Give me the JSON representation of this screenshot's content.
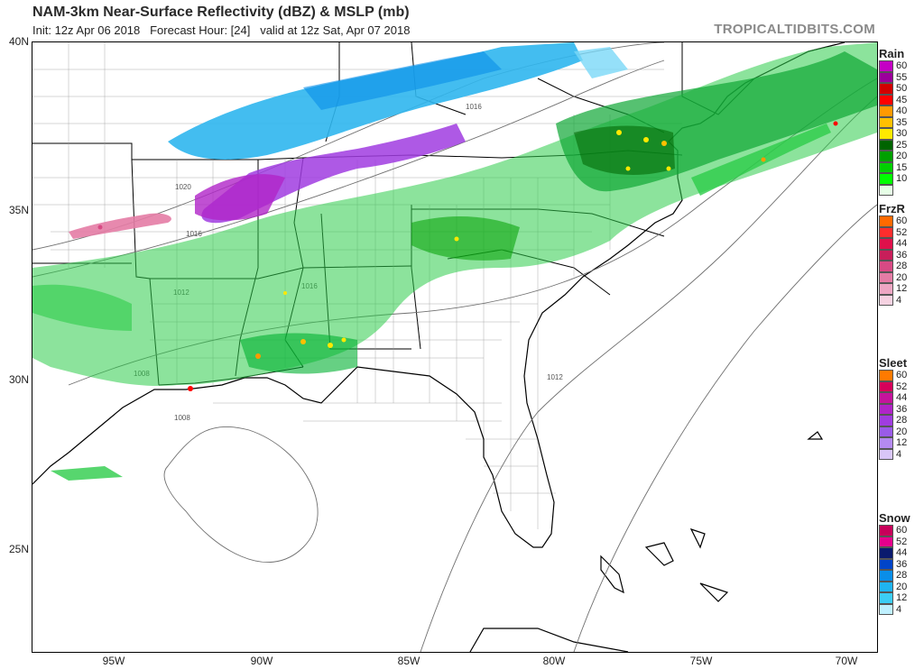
{
  "header": {
    "title": "NAM-3km Near-Surface Reflectivity (dBZ) & MSLP (mb)",
    "subtitle": "Init: 12z Apr 06 2018   Forecast Hour: [24]   valid at 12z Sat, Apr 07 2018",
    "brand": "TROPICALTIDBITS.COM"
  },
  "axes": {
    "lat_labels": [
      "40N",
      "35N",
      "30N",
      "25N"
    ],
    "lon_labels": [
      "95W",
      "90W",
      "85W",
      "80W",
      "75W",
      "70W"
    ]
  },
  "isobars": [
    "1016",
    "1020",
    "1016",
    "1012",
    "1016",
    "1008",
    "1012",
    "1008"
  ],
  "legends": [
    {
      "title": "Rain",
      "ticks": [
        "60",
        "55",
        "50",
        "45",
        "40",
        "35",
        "30",
        "25",
        "20",
        "15",
        "10"
      ],
      "colors": [
        "#c400c4",
        "#9b009b",
        "#d20000",
        "#ff0000",
        "#ff9a00",
        "#ffc000",
        "#ffe900",
        "#006400",
        "#00a000",
        "#00d000",
        "#00ff00",
        "#e6ffe6"
      ]
    },
    {
      "title": "FrzR",
      "ticks": [
        "60",
        "52",
        "44",
        "36",
        "28",
        "20",
        "12",
        "4"
      ],
      "colors": [
        "#ff6a00",
        "#ff2d2d",
        "#e0104b",
        "#c81e5a",
        "#d84a84",
        "#e47ca5",
        "#eda6c3",
        "#f6d2e1"
      ]
    },
    {
      "title": "Sleet",
      "ticks": [
        "60",
        "52",
        "44",
        "36",
        "28",
        "20",
        "12",
        "4"
      ],
      "colors": [
        "#ff7a00",
        "#d6005a",
        "#c4149c",
        "#b024c8",
        "#a03ce0",
        "#9a5be8",
        "#b48af0",
        "#d9c6f8"
      ]
    },
    {
      "title": "Snow",
      "ticks": [
        "60",
        "52",
        "44",
        "36",
        "28",
        "20",
        "12",
        "4"
      ],
      "colors": [
        "#c8005a",
        "#e6008c",
        "#0a1a6e",
        "#0044c8",
        "#0a8ee8",
        "#1fb4f0",
        "#3ccdf5",
        "#bff0ff"
      ]
    }
  ]
}
